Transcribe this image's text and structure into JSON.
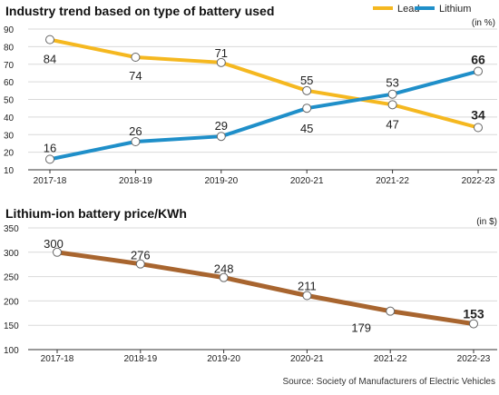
{
  "chart_data": [
    {
      "type": "line",
      "title": "Industry trend based on type of battery used",
      "unit_note": "(in %)",
      "categories": [
        "2017-18",
        "2018-19",
        "2019-20",
        "2020-21",
        "2021-22",
        "2022-23"
      ],
      "ylim": [
        10,
        90
      ],
      "yticks": [
        10,
        20,
        30,
        40,
        50,
        60,
        70,
        80,
        90
      ],
      "grid": true,
      "legend": "top-right",
      "series": [
        {
          "name": "Lead",
          "color": "#f5b820",
          "values": [
            84,
            74,
            71,
            55,
            47,
            34
          ]
        },
        {
          "name": "Lithium",
          "color": "#1f8fc9",
          "values": [
            16,
            26,
            29,
            45,
            53,
            66
          ]
        }
      ]
    },
    {
      "type": "line",
      "title": "Lithium-ion battery price/KWh",
      "unit_note": "(in $)",
      "categories": [
        "2017-18",
        "2018-19",
        "2019-20",
        "2020-21",
        "2021-22",
        "2022-23"
      ],
      "ylim": [
        100,
        350
      ],
      "yticks": [
        100,
        150,
        200,
        250,
        300,
        350
      ],
      "grid": true,
      "series": [
        {
          "color": "#a8652f",
          "values": [
            300,
            276,
            248,
            211,
            179,
            153
          ]
        }
      ]
    }
  ],
  "source": "Source: Society of Manufacturers of Electric Vehicles"
}
